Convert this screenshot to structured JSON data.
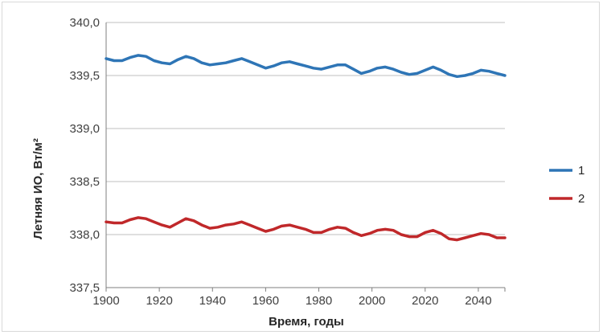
{
  "chart_data": {
    "type": "line",
    "title": "",
    "xlabel": "Время, годы",
    "ylabel": "Летняя ИО, Вт/м²",
    "xlim": [
      1900,
      2050
    ],
    "ylim": [
      337.5,
      340.0
    ],
    "x_ticks": [
      "1900",
      "1920",
      "1940",
      "1960",
      "1980",
      "2000",
      "2020",
      "2040"
    ],
    "x_tick_values": [
      1900,
      1920,
      1940,
      1960,
      1980,
      2000,
      2020,
      2040
    ],
    "y_ticks": [
      "337,5",
      "338,0",
      "338,5",
      "339,0",
      "339,5",
      "340,0"
    ],
    "y_tick_values": [
      337.5,
      338.0,
      338.5,
      339.0,
      339.5,
      340.0
    ],
    "grid": true,
    "legend_position": "right",
    "series": [
      {
        "name": "1",
        "color": "#2e75b6",
        "x": [
          1900,
          1903,
          1906,
          1909,
          1912,
          1915,
          1918,
          1921,
          1924,
          1927,
          1930,
          1933,
          1936,
          1939,
          1942,
          1945,
          1948,
          1951,
          1954,
          1957,
          1960,
          1963,
          1966,
          1969,
          1972,
          1975,
          1978,
          1981,
          1984,
          1987,
          1990,
          1993,
          1996,
          1999,
          2002,
          2005,
          2008,
          2011,
          2014,
          2017,
          2020,
          2023,
          2026,
          2029,
          2032,
          2035,
          2038,
          2041,
          2044,
          2047,
          2050
        ],
        "values": [
          339.66,
          339.64,
          339.64,
          339.67,
          339.69,
          339.68,
          339.64,
          339.62,
          339.61,
          339.65,
          339.68,
          339.66,
          339.62,
          339.6,
          339.61,
          339.62,
          339.64,
          339.66,
          339.63,
          339.6,
          339.57,
          339.59,
          339.62,
          339.63,
          339.61,
          339.59,
          339.57,
          339.56,
          339.58,
          339.6,
          339.6,
          339.56,
          339.52,
          339.54,
          339.57,
          339.58,
          339.56,
          339.53,
          339.51,
          339.52,
          339.55,
          339.58,
          339.55,
          339.51,
          339.49,
          339.5,
          339.52,
          339.55,
          339.54,
          339.52,
          339.5
        ]
      },
      {
        "name": "2",
        "color": "#c0282a",
        "x": [
          1900,
          1903,
          1906,
          1909,
          1912,
          1915,
          1918,
          1921,
          1924,
          1927,
          1930,
          1933,
          1936,
          1939,
          1942,
          1945,
          1948,
          1951,
          1954,
          1957,
          1960,
          1963,
          1966,
          1969,
          1972,
          1975,
          1978,
          1981,
          1984,
          1987,
          1990,
          1993,
          1996,
          1999,
          2002,
          2005,
          2008,
          2011,
          2014,
          2017,
          2020,
          2023,
          2026,
          2029,
          2032,
          2035,
          2038,
          2041,
          2044,
          2047,
          2050
        ],
        "values": [
          338.12,
          338.11,
          338.11,
          338.14,
          338.16,
          338.15,
          338.12,
          338.09,
          338.07,
          338.11,
          338.15,
          338.13,
          338.09,
          338.06,
          338.07,
          338.09,
          338.1,
          338.12,
          338.09,
          338.06,
          338.03,
          338.05,
          338.08,
          338.09,
          338.07,
          338.05,
          338.02,
          338.02,
          338.05,
          338.07,
          338.06,
          338.02,
          337.99,
          338.01,
          338.04,
          338.05,
          338.04,
          338.0,
          337.98,
          337.98,
          338.02,
          338.04,
          338.01,
          337.96,
          337.95,
          337.97,
          337.99,
          338.01,
          338.0,
          337.97,
          337.97
        ]
      }
    ]
  }
}
